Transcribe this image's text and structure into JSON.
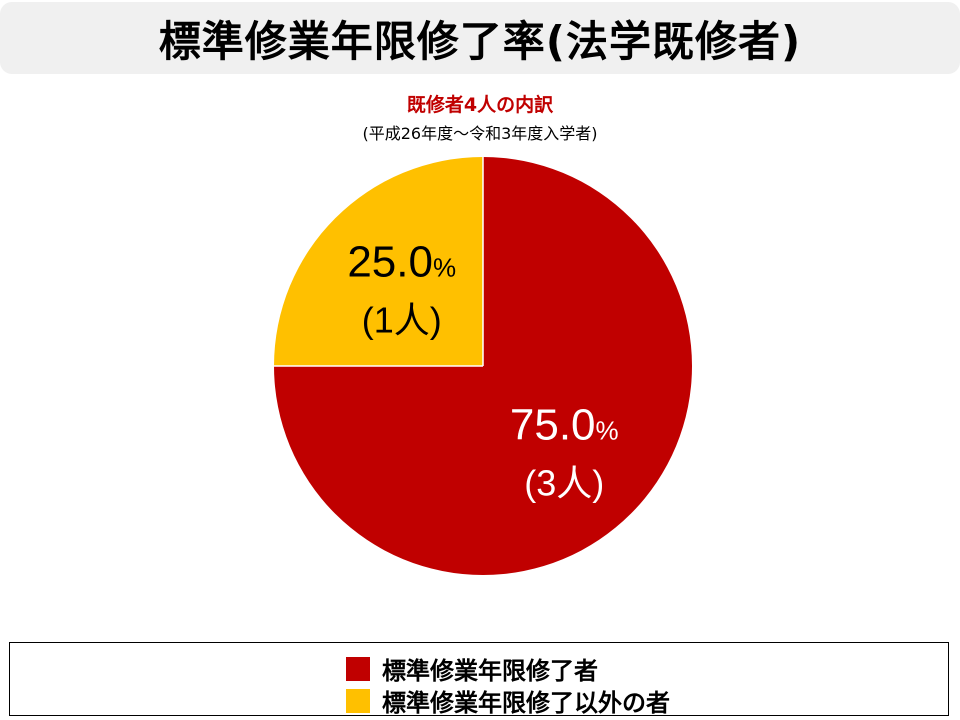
{
  "title": "標準修業年限修了率(法学既修者)",
  "chart_data": {
    "type": "pie",
    "title": "既修者4人の内訳",
    "subtitle": "(平成26年度〜令和3年度入学者)",
    "start_angle_deg": 0,
    "direction": "clockwise",
    "slices": [
      {
        "label": "標準修業年限修了者",
        "value": 75.0,
        "count_label": "(3人)",
        "pct_label": "75.0",
        "color": "#c00000",
        "text_color": "#ffffff"
      },
      {
        "label": "標準修業年限修了以外の者",
        "value": 25.0,
        "count_label": "(1人)",
        "pct_label": "25.0",
        "color": "#ffc000",
        "text_color": "#000000"
      }
    ],
    "percent_sign": "%",
    "legend_position": "bottom"
  }
}
